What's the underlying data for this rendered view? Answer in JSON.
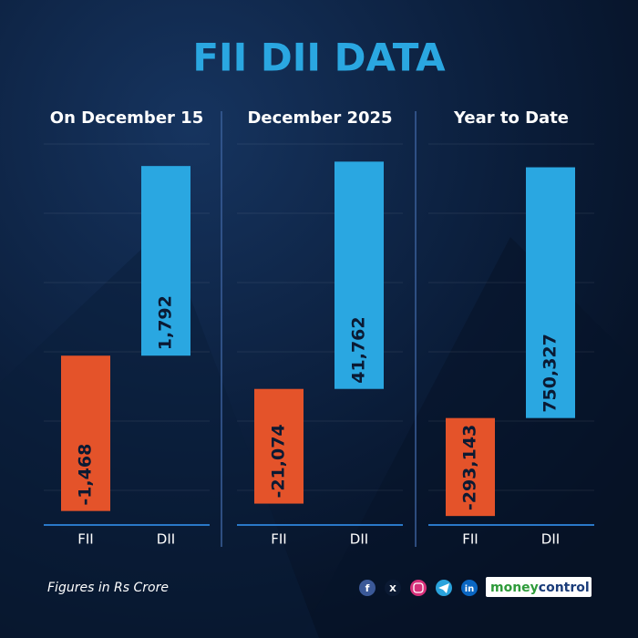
{
  "title": "FII DII DATA",
  "note": "Figures in Rs Crore",
  "social": [
    "f",
    "X",
    "in"
  ],
  "brand": [
    "money",
    "control"
  ],
  "chart_data": [
    {
      "type": "bar",
      "title": "On December 15",
      "categories": [
        "FII",
        "DII"
      ],
      "values": [
        -1468,
        1792
      ],
      "value_labels": [
        "-1,468",
        "1,792"
      ],
      "colors": [
        "#e4532a",
        "#2aa7e1"
      ],
      "ylim": [
        -1600,
        2000
      ]
    },
    {
      "type": "bar",
      "title": "December 2025",
      "categories": [
        "FII",
        "DII"
      ],
      "values": [
        -21074,
        41762
      ],
      "value_labels": [
        "-21,074",
        "41,762"
      ],
      "colors": [
        "#e4532a",
        "#2aa7e1"
      ],
      "ylim": [
        -25000,
        45000
      ]
    },
    {
      "type": "bar",
      "title": "Year to Date",
      "categories": [
        "FII",
        "DII"
      ],
      "values": [
        -293143,
        750327
      ],
      "value_labels": [
        "-293,143",
        "750,327"
      ],
      "colors": [
        "#e4532a",
        "#2aa7e1"
      ],
      "ylim": [
        -320000,
        820000
      ]
    }
  ]
}
